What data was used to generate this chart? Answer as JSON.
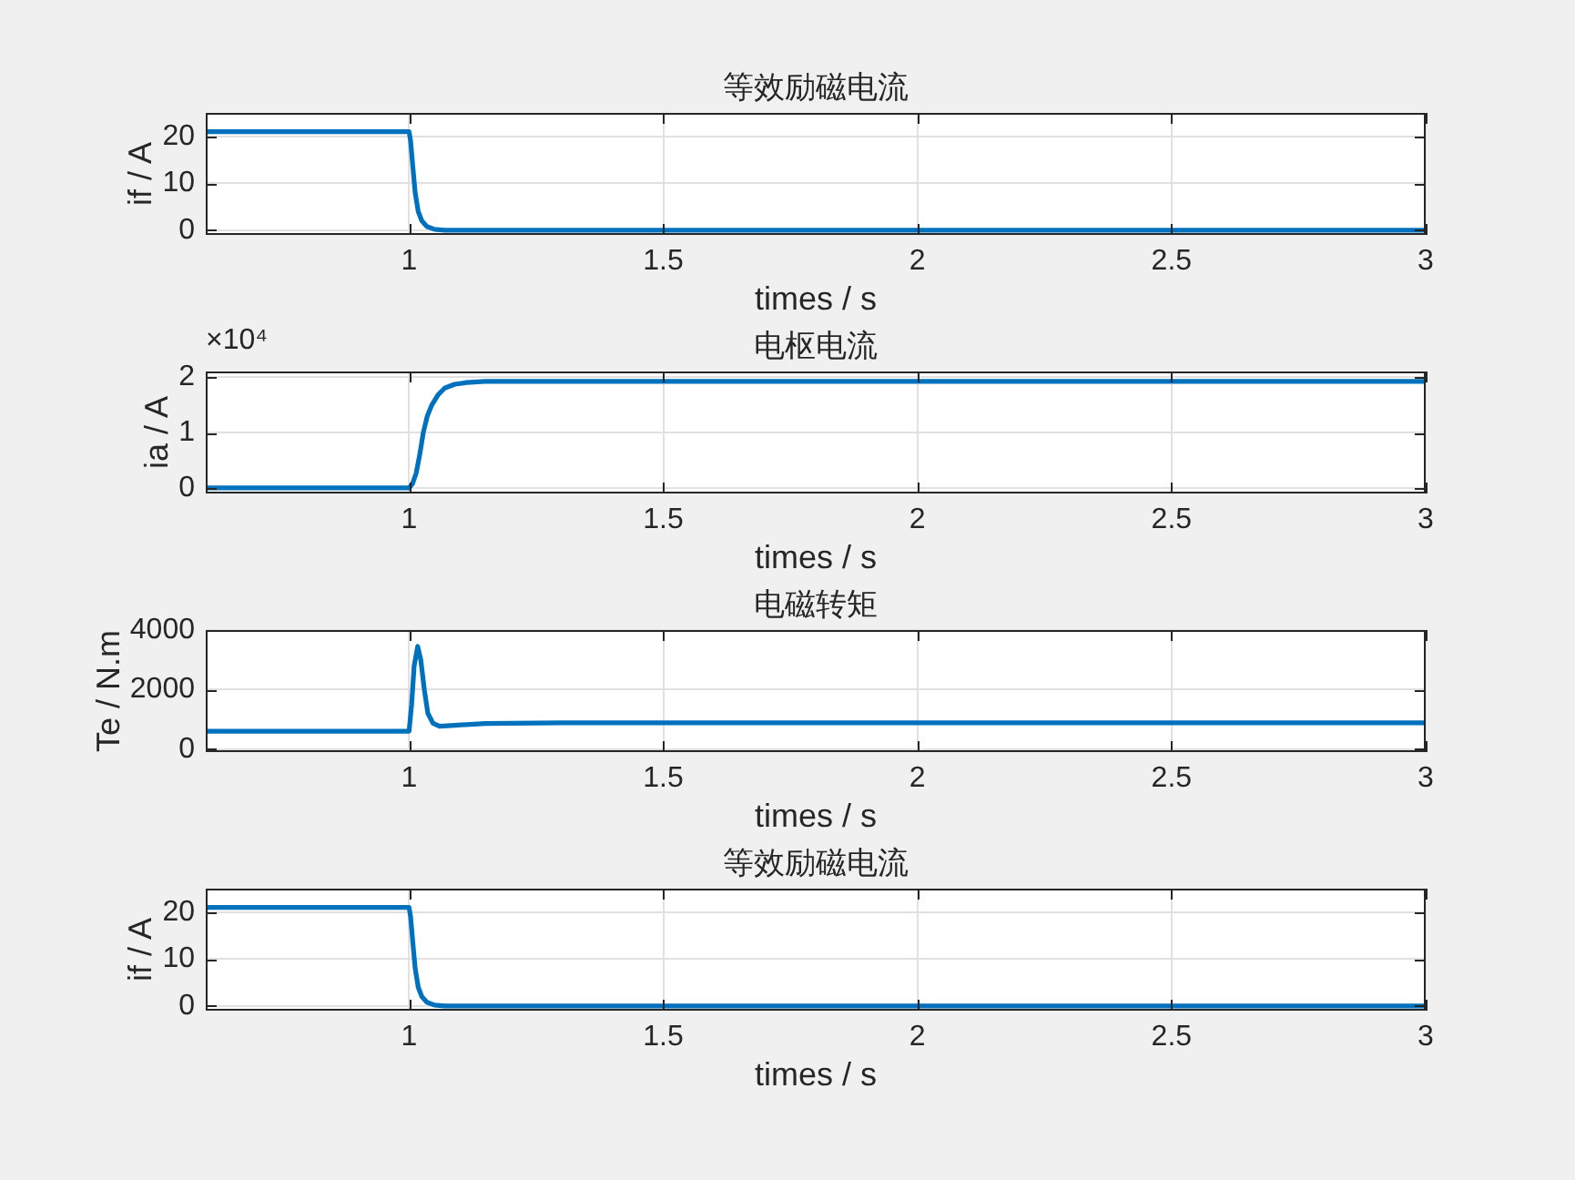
{
  "chart_data": [
    {
      "type": "line",
      "title": "等效励磁电流",
      "xlabel": "times / s",
      "ylabel": "if / A",
      "x": [
        0.6,
        1.0,
        1.003,
        1.007,
        1.012,
        1.018,
        1.025,
        1.035,
        1.05,
        1.07,
        3
      ],
      "series": [
        {
          "color": "#0072bd",
          "values": [
            21,
            21,
            19,
            14,
            8,
            4,
            2,
            0.8,
            0.2,
            0,
            0
          ]
        }
      ],
      "xlim": [
        0.6,
        3
      ],
      "xticks": [
        1,
        1.5,
        2,
        2.5,
        3
      ],
      "ylim": [
        -1,
        25
      ],
      "yticks": [
        0,
        10,
        20
      ],
      "grid": true
    },
    {
      "type": "line",
      "title": "电枢电流",
      "xlabel": "times / s",
      "ylabel": "ia / A",
      "annotations": [
        "×10⁴"
      ],
      "x": [
        0.6,
        1.0,
        1.007,
        1.014,
        1.021,
        1.028,
        1.036,
        1.045,
        1.057,
        1.07,
        1.09,
        1.113,
        1.15,
        3
      ],
      "series": [
        {
          "color": "#0072bd",
          "values": [
            0,
            0,
            0.08,
            0.27,
            0.6,
            1.0,
            1.3,
            1.5,
            1.68,
            1.8,
            1.87,
            1.9,
            1.92,
            1.92
          ]
        }
      ],
      "xlim": [
        0.6,
        3
      ],
      "xticks": [
        1,
        1.5,
        2,
        2.5,
        3
      ],
      "ylim": [
        -0.1,
        2.1
      ],
      "yticks": [
        0,
        1,
        2
      ],
      "grid": true
    },
    {
      "type": "line",
      "title": "电磁转矩",
      "xlabel": "times / s",
      "ylabel": "Te / N.m",
      "x": [
        0.6,
        1.0,
        1.005,
        1.01,
        1.017,
        1.023,
        1.03,
        1.037,
        1.047,
        1.06,
        1.09,
        1.15,
        1.3,
        3
      ],
      "series": [
        {
          "color": "#0072bd",
          "values": [
            600,
            600,
            1500,
            2800,
            3450,
            3000,
            2000,
            1200,
            870,
            770,
            800,
            860,
            880,
            880
          ]
        }
      ],
      "xlim": [
        0.6,
        3
      ],
      "xticks": [
        1,
        1.5,
        2,
        2.5,
        3
      ],
      "ylim": [
        -100,
        4000
      ],
      "yticks": [
        0,
        2000,
        4000
      ],
      "grid": true
    },
    {
      "type": "line",
      "title": "等效励磁电流",
      "xlabel": "times / s",
      "ylabel": "if / A",
      "x": [
        0.6,
        1.0,
        1.003,
        1.007,
        1.012,
        1.018,
        1.025,
        1.035,
        1.05,
        1.07,
        3
      ],
      "series": [
        {
          "color": "#0072bd",
          "values": [
            21,
            21,
            19,
            14,
            8,
            4,
            2,
            0.8,
            0.2,
            0,
            0
          ]
        }
      ],
      "xlim": [
        0.6,
        3
      ],
      "xticks": [
        1,
        1.5,
        2,
        2.5,
        3
      ],
      "ylim": [
        -1,
        25
      ],
      "yticks": [
        0,
        10,
        20
      ],
      "grid": true
    }
  ]
}
